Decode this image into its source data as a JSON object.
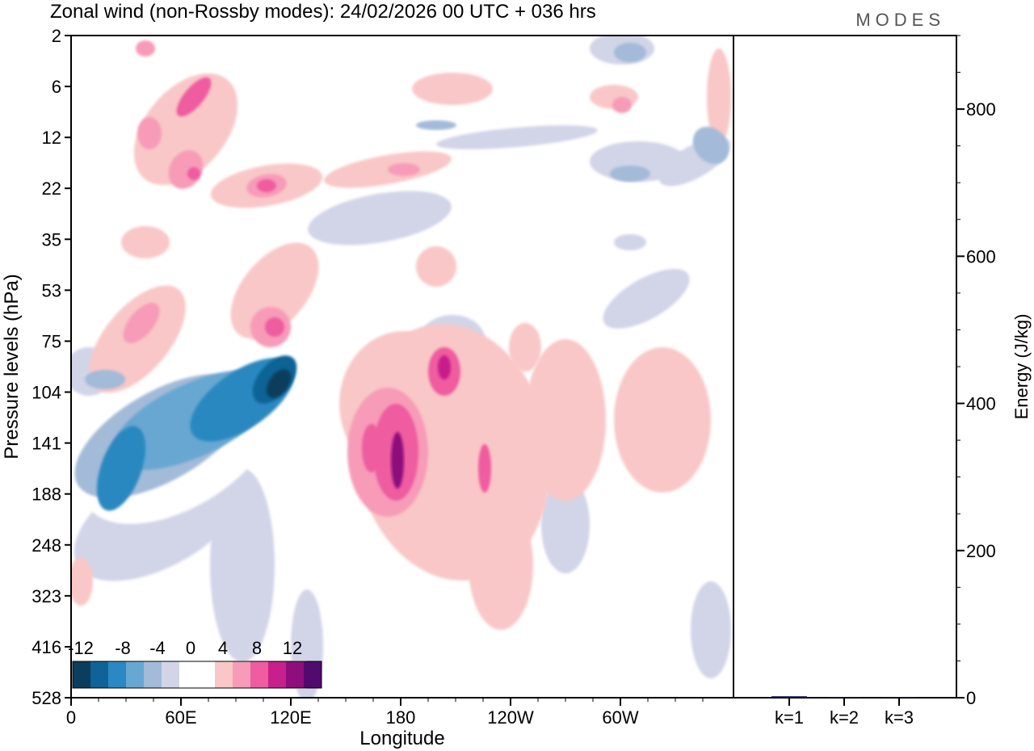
{
  "chart_data": {
    "type": "heatmap",
    "title": "Zonal wind (non-Rossby modes):  24/02/2026  00 UTC  + 036 hrs",
    "logo": "MODES",
    "xlabel": "Longitude",
    "ylabel": "Pressure levels (hPa)",
    "x_ticks": [
      "0",
      "60E",
      "120E",
      "180",
      "120W",
      "60W"
    ],
    "x_tick_values": [
      0,
      60,
      120,
      180,
      240,
      300
    ],
    "xlim": [
      0,
      360
    ],
    "y_ticks": [
      "2",
      "6",
      "12",
      "22",
      "35",
      "53",
      "75",
      "104",
      "141",
      "188",
      "248",
      "323",
      "416",
      "528"
    ],
    "colorbar": {
      "tick_labels": [
        "-12",
        "-8",
        "-4",
        "0",
        "4",
        "8",
        "12"
      ],
      "colors": [
        "#0b3d5c",
        "#0f6396",
        "#2b88c0",
        "#68a7d2",
        "#a3bad9",
        "#d2d4e8",
        "#ffffff",
        "#f9c7c7",
        "#f79bb8",
        "#ef5ca0",
        "#c71f8b",
        "#8e0f7c",
        "#520a6e"
      ]
    },
    "energy_panel": {
      "type": "bar",
      "ylabel": "Energy (J/kg)",
      "y_ticks": [
        "0",
        "200",
        "400",
        "600",
        "800"
      ],
      "y_tick_values": [
        0,
        200,
        400,
        600,
        800
      ],
      "ylim": [
        0,
        900
      ],
      "categories": [
        "k=1",
        "k=2",
        "k=3"
      ],
      "values": [
        2,
        1,
        1
      ],
      "color": "#1a1a5a"
    }
  }
}
